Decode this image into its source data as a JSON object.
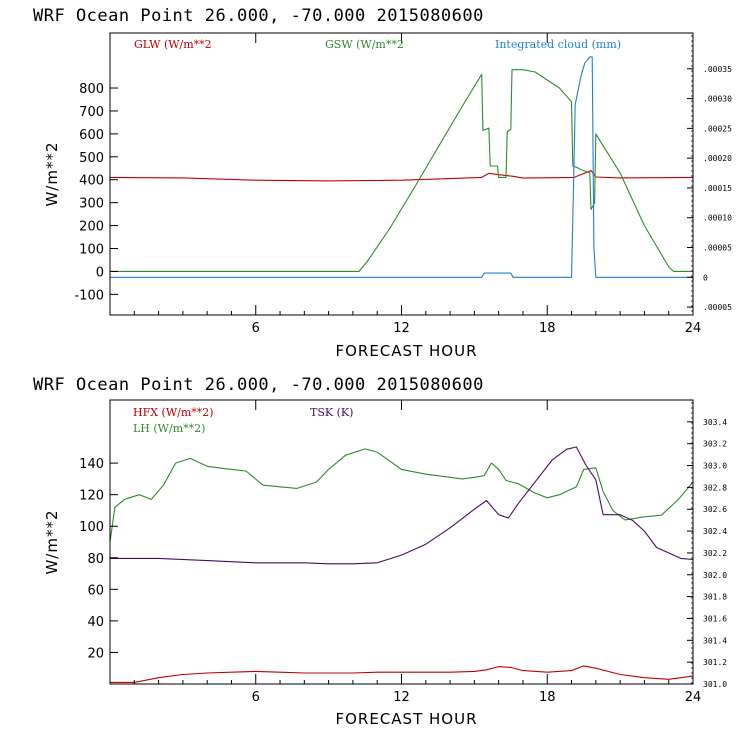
{
  "chart_data": [
    {
      "type": "line",
      "title": "WRF  Ocean Point   26.000, -70.000  2015080600",
      "xlabel": "FORECAST HOUR",
      "ylabel": "W/m**2",
      "xlim": [
        0,
        24
      ],
      "ylim": [
        -190,
        1040
      ],
      "x_ticks": [
        6,
        12,
        18,
        24
      ],
      "x_tick_labels": [
        "6",
        "12",
        "18",
        "24"
      ],
      "y_ticks": [
        -100,
        0,
        100,
        200,
        300,
        400,
        500,
        600,
        700,
        800
      ],
      "y_tick_labels": [
        "-100",
        "0",
        "100",
        "200",
        "300",
        "400",
        "500",
        "600",
        "700",
        "800"
      ],
      "y2_label": "Integrated cloud (mm)",
      "y2lim": [
        -6.33e-05,
        0.0004101
      ],
      "y2_ticks": [
        -5e-05,
        0,
        5e-05,
        0.0001,
        0.00015,
        0.0002,
        0.00025,
        0.0003,
        0.00035
      ],
      "y2_tick_labels": [
        ".00005",
        "0",
        ".00005",
        ".00010",
        ".00015",
        ".00020",
        ".00025",
        ".00030",
        ".00035"
      ],
      "series": [
        {
          "name": "GLW (W/m**2",
          "axis": "left",
          "color": "#c00000",
          "x": [
            0,
            3,
            6,
            9,
            12,
            14,
            15.3,
            15.6,
            16,
            16.6,
            17,
            19.1,
            19.8,
            20,
            21,
            24
          ],
          "y": [
            410,
            408,
            398,
            395,
            398,
            405,
            410,
            428,
            422,
            415,
            407,
            410,
            440,
            412,
            408,
            410
          ]
        },
        {
          "name": "GSW (W/m**2",
          "axis": "left",
          "color": "#2e8b2e",
          "x": [
            0,
            10.25,
            10.6,
            11.5,
            12.5,
            13.5,
            14.5,
            15.3,
            15.35,
            15.6,
            15.65,
            15.95,
            16.0,
            16.3,
            16.35,
            16.5,
            16.55,
            17.0,
            17.5,
            18.5,
            19.0,
            19.05,
            19.3,
            19.35,
            19.75,
            19.8,
            19.95,
            20.0,
            21.0,
            22.0,
            23.0,
            23.2,
            24
          ],
          "y": [
            0,
            0,
            45,
            185,
            360,
            540,
            720,
            860,
            615,
            625,
            460,
            460,
            410,
            410,
            610,
            620,
            880,
            880,
            870,
            800,
            740,
            460,
            450,
            445,
            430,
            270,
            300,
            600,
            430,
            200,
            20,
            0,
            0
          ]
        },
        {
          "name": "Integrated cloud (mm)",
          "axis": "right",
          "color": "#1f7fd4",
          "x": [
            0,
            15.3,
            15.4,
            16.5,
            16.6,
            19.0,
            19.08,
            19.15,
            19.3,
            19.4,
            19.55,
            19.75,
            19.85,
            19.92,
            20.0,
            24
          ],
          "y": [
            0,
            0,
            7e-06,
            7e-06,
            0,
            0,
            0.00015,
            0.00029,
            0.00032,
            0.00034,
            0.00036,
            0.00037,
            0.00037,
            5e-05,
            0,
            0
          ]
        }
      ]
    },
    {
      "type": "line",
      "title": "WRF  Ocean Point   26.000, -70.000  2015080600",
      "xlabel": "FORECAST HOUR",
      "ylabel": "W/m**2",
      "xlim": [
        0,
        24
      ],
      "ylim": [
        0,
        180
      ],
      "x_ticks": [
        6,
        12,
        18,
        24
      ],
      "x_tick_labels": [
        "6",
        "12",
        "18",
        "24"
      ],
      "y_ticks": [
        20,
        40,
        60,
        80,
        100,
        120,
        140
      ],
      "y_tick_labels": [
        "20",
        "40",
        "60",
        "80",
        "100",
        "120",
        "140"
      ],
      "y2_label": "TSK (K)",
      "y2lim": [
        301.0,
        303.6
      ],
      "y2_ticks": [
        301.0,
        301.2,
        301.4,
        301.6,
        301.8,
        302.0,
        302.2,
        302.4,
        302.6,
        302.8,
        303.0,
        303.2,
        303.4
      ],
      "y2_tick_labels": [
        "301.0",
        "301.2",
        "301.4",
        "301.6",
        "301.8",
        "302.0",
        "302.2",
        "302.4",
        "302.6",
        "302.8",
        "303.0",
        "303.2",
        "303.4"
      ],
      "series": [
        {
          "name": "HFX (W/m**2)",
          "axis": "left",
          "color": "#c00000",
          "x": [
            0,
            1,
            2,
            3,
            4,
            5,
            6,
            7,
            8,
            9,
            10,
            11,
            12,
            13,
            14,
            15,
            15.5,
            16,
            16.5,
            17,
            18,
            19,
            19.5,
            20,
            21,
            22,
            23,
            24
          ],
          "y": [
            1,
            1,
            4,
            6,
            7,
            7.5,
            8,
            7.5,
            7,
            7,
            7,
            7.5,
            7.5,
            7.5,
            7.5,
            8,
            9,
            11,
            10.5,
            8.5,
            7.5,
            8.5,
            11.5,
            10,
            6,
            4,
            3,
            5
          ]
        },
        {
          "name": "LH  (W/m**2)",
          "axis": "left",
          "color": "#2e8b2e",
          "x": [
            0,
            0.2,
            0.6,
            1.2,
            1.7,
            2.2,
            2.7,
            3.3,
            4,
            5,
            5.6,
            6.3,
            7,
            7.7,
            8.5,
            9,
            9.7,
            10.5,
            11,
            12,
            13,
            14,
            14.5,
            15,
            15.4,
            15.7,
            16,
            16.3,
            16.8,
            17.5,
            18,
            18.5,
            19.2,
            19.5,
            20,
            20.3,
            20.7,
            21.2,
            22,
            22.7,
            23.4,
            24
          ],
          "y": [
            90,
            112,
            117,
            120,
            117,
            126,
            140,
            143,
            138,
            136,
            135,
            126,
            125,
            124,
            128,
            136,
            145,
            149,
            147,
            136,
            133,
            131,
            130,
            131,
            132,
            140,
            136,
            129,
            127,
            121,
            118,
            120,
            125,
            136,
            137,
            122,
            110,
            104,
            106,
            107,
            117,
            128
          ]
        },
        {
          "name": "TSK (K)",
          "axis": "right",
          "color": "#4b0a5e",
          "x": [
            0,
            2,
            4,
            6,
            8,
            9,
            10,
            11,
            12,
            13,
            14,
            15,
            15.5,
            16.0,
            16.4,
            16.8,
            17.5,
            18.2,
            18.8,
            19.2,
            19.6,
            20.0,
            20.3,
            21.0,
            21.5,
            22,
            22.5,
            23.5,
            24
          ],
          "y": [
            302.15,
            302.15,
            302.13,
            302.11,
            302.11,
            302.1,
            302.1,
            302.11,
            302.18,
            302.28,
            302.43,
            302.6,
            302.68,
            302.55,
            302.52,
            302.65,
            302.85,
            303.05,
            303.15,
            303.17,
            303.0,
            302.87,
            302.55,
            302.55,
            302.5,
            302.4,
            302.25,
            302.15,
            302.14
          ]
        }
      ]
    }
  ]
}
